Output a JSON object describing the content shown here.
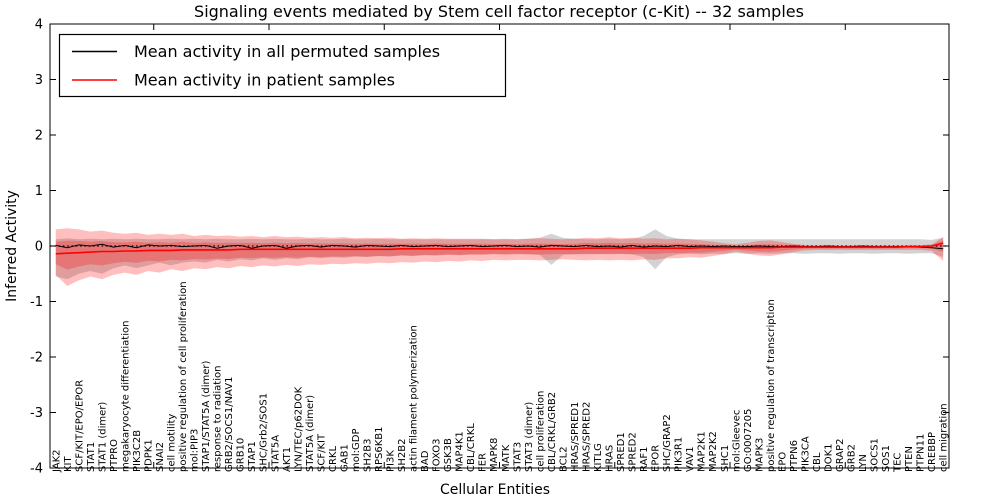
{
  "figure": {
    "title": "Signaling events mediated by Stem cell factor receptor (c-Kit) -- 32 samples",
    "xlabel": "Cellular Entities",
    "ylabel": "Inferred Activity"
  },
  "chart_data": {
    "type": "line",
    "title": "Signaling events mediated by Stem cell factor receptor (c-Kit) -- 32 samples",
    "xlabel": "Cellular Entities",
    "ylabel": "Inferred Activity",
    "ylim": [
      -4,
      4
    ],
    "yticks": [
      -4,
      -3,
      -2,
      -1,
      0,
      1,
      2,
      3,
      4
    ],
    "grid": false,
    "legend_position": "upper left",
    "zero_line": {
      "y": 0,
      "style": "dotted",
      "color": "#000000"
    },
    "categories": [
      "JAK2",
      "KIT",
      "SCF/KIT/EPO/EPOR",
      "STAT1",
      "STAT1 (dimer)",
      "PTPRO",
      "megakaryocyte differentiation",
      "PIK3C2B",
      "PDPK1",
      "SNAI2",
      "cell motility",
      "positive regulation of cell proliferation",
      "mol:PIP3",
      "STAP1/STAT5A (dimer)",
      "response to radiation",
      "GRB2/SOCS1/NAV1",
      "GRB10",
      "STAP1",
      "SHC/Grb2/SOS1",
      "STAT5A",
      "AKT1",
      "LYN/TEC/p62DOK",
      "STAT5A (dimer)",
      "SCF/KIT",
      "CRKL",
      "GAB1",
      "mol:GDP",
      "SH2B3",
      "RPS6KB1",
      "PI3K",
      "SH2B2",
      "actin filament polymerization",
      "BAD",
      "FOXO3",
      "GSK3B",
      "MAP4K1",
      "CBL/CRKL",
      "FER",
      "MAPK8",
      "MATK",
      "STAT3",
      "STAT3 (dimer)",
      "cell proliferation",
      "CBL/CRKL/GRB2",
      "BCL2",
      "HRAS/SPRED1",
      "HRAS/SPRED2",
      "KITLG",
      "HRAS",
      "SPRED1",
      "SPRED2",
      "RAF1",
      "EPOR",
      "SHC/GRAP2",
      "PIK3R1",
      "VAV1",
      "MAP2K1",
      "MAP2K2",
      "SHC1",
      "mol:Gleevec",
      "GO:0007205",
      "MAPK3",
      "positive regulation of transcription",
      "EPO",
      "PTPN6",
      "PIK3CA",
      "CBL",
      "DOK1",
      "GRAP2",
      "GRB2",
      "LYN",
      "SOCS1",
      "SOS1",
      "TEC",
      "PTEN",
      "PTPN11",
      "CREBBP",
      "cell migration"
    ],
    "series": [
      {
        "name": "Mean activity in all permuted samples",
        "color": "#000000",
        "band_color": "#808080",
        "band_opacity": 0.35,
        "values": [
          0.01,
          -0.03,
          0.02,
          0.0,
          0.03,
          -0.02,
          0.01,
          -0.03,
          0.02,
          0.0,
          0.01,
          -0.01,
          0.0,
          0.01,
          -0.04,
          0.0,
          0.01,
          -0.04,
          0.0,
          0.01,
          -0.04,
          0.0,
          0.01,
          -0.02,
          0.01,
          0.0,
          -0.02,
          0.01,
          0.0,
          -0.01,
          0.01,
          -0.01,
          0.0,
          0.01,
          -0.01,
          0.0,
          0.01,
          -0.01,
          0.0,
          0.01,
          -0.01,
          0.0,
          -0.02,
          0.01,
          0.0,
          -0.01,
          0.01,
          -0.01,
          0.0,
          -0.02,
          0.01,
          -0.02,
          0.0,
          -0.01,
          0.01,
          -0.01,
          0.0,
          -0.01,
          0.0,
          -0.01,
          -0.01,
          0.0,
          -0.01,
          -0.01,
          0.0,
          -0.01,
          -0.01,
          0.0,
          -0.01,
          -0.01,
          0.0,
          -0.01,
          -0.01,
          -0.01,
          -0.01,
          -0.02,
          -0.03,
          -0.05
        ],
        "band_upper": [
          0.12,
          0.14,
          0.12,
          0.13,
          0.12,
          0.13,
          0.12,
          0.13,
          0.12,
          0.12,
          0.13,
          0.12,
          0.13,
          0.12,
          0.13,
          0.12,
          0.12,
          0.13,
          0.12,
          0.13,
          0.12,
          0.12,
          0.13,
          0.12,
          0.12,
          0.13,
          0.12,
          0.12,
          0.13,
          0.12,
          0.12,
          0.12,
          0.12,
          0.12,
          0.12,
          0.12,
          0.12,
          0.12,
          0.12,
          0.12,
          0.12,
          0.13,
          0.15,
          0.22,
          0.15,
          0.13,
          0.12,
          0.12,
          0.13,
          0.12,
          0.13,
          0.18,
          0.3,
          0.18,
          0.13,
          0.12,
          0.12,
          0.12,
          0.12,
          0.12,
          0.12,
          0.12,
          0.12,
          0.12,
          0.12,
          0.12,
          0.12,
          0.12,
          0.12,
          0.12,
          0.12,
          0.12,
          0.12,
          0.12,
          0.12,
          0.12,
          0.11,
          0.15
        ],
        "band_lower": [
          -0.55,
          -0.6,
          -0.5,
          -0.45,
          -0.5,
          -0.4,
          -0.35,
          -0.4,
          -0.35,
          -0.3,
          -0.35,
          -0.3,
          -0.28,
          -0.3,
          -0.25,
          -0.28,
          -0.24,
          -0.26,
          -0.22,
          -0.25,
          -0.22,
          -0.24,
          -0.2,
          -0.22,
          -0.2,
          -0.21,
          -0.19,
          -0.2,
          -0.18,
          -0.19,
          -0.17,
          -0.18,
          -0.16,
          -0.17,
          -0.15,
          -0.16,
          -0.15,
          -0.15,
          -0.14,
          -0.15,
          -0.14,
          -0.15,
          -0.16,
          -0.34,
          -0.16,
          -0.15,
          -0.14,
          -0.15,
          -0.14,
          -0.14,
          -0.15,
          -0.2,
          -0.42,
          -0.2,
          -0.15,
          -0.14,
          -0.15,
          -0.14,
          -0.14,
          -0.13,
          -0.14,
          -0.13,
          -0.14,
          -0.13,
          -0.13,
          -0.14,
          -0.13,
          -0.13,
          -0.14,
          -0.13,
          -0.13,
          -0.14,
          -0.13,
          -0.13,
          -0.14,
          -0.13,
          -0.13,
          -0.2
        ]
      },
      {
        "name": "Mean activity in patient samples",
        "color": "#ff0000",
        "band_color": "#ff0000",
        "band_opacity": 0.25,
        "inner_band_scale": 0.5,
        "values": [
          -0.14,
          -0.13,
          -0.12,
          -0.11,
          -0.1,
          -0.1,
          -0.09,
          -0.09,
          -0.08,
          -0.08,
          -0.08,
          -0.07,
          -0.07,
          -0.07,
          -0.07,
          -0.07,
          -0.06,
          -0.06,
          -0.06,
          -0.06,
          -0.06,
          -0.06,
          -0.06,
          -0.06,
          -0.06,
          -0.06,
          -0.06,
          -0.06,
          -0.06,
          -0.06,
          -0.05,
          -0.05,
          -0.05,
          -0.05,
          -0.05,
          -0.05,
          -0.05,
          -0.05,
          -0.05,
          -0.05,
          -0.05,
          -0.05,
          -0.05,
          -0.05,
          -0.05,
          -0.05,
          -0.04,
          -0.04,
          -0.04,
          -0.04,
          -0.04,
          -0.04,
          -0.04,
          -0.04,
          -0.04,
          -0.04,
          -0.03,
          -0.03,
          -0.03,
          -0.03,
          -0.03,
          -0.03,
          -0.03,
          -0.02,
          -0.02,
          -0.02,
          -0.02,
          -0.02,
          -0.02,
          -0.02,
          -0.02,
          -0.02,
          -0.02,
          -0.02,
          -0.01,
          -0.01,
          0.0,
          0.05
        ],
        "band_upper": [
          0.3,
          0.32,
          0.3,
          0.26,
          0.28,
          0.24,
          0.22,
          0.24,
          0.2,
          0.22,
          0.2,
          0.22,
          0.18,
          0.2,
          0.18,
          0.19,
          0.17,
          0.18,
          0.16,
          0.18,
          0.16,
          0.17,
          0.15,
          0.16,
          0.15,
          0.16,
          0.14,
          0.15,
          0.14,
          0.15,
          0.13,
          0.14,
          0.13,
          0.14,
          0.13,
          0.13,
          0.13,
          0.13,
          0.12,
          0.13,
          0.12,
          0.13,
          0.14,
          0.13,
          0.12,
          0.13,
          0.15,
          0.14,
          0.16,
          0.14,
          0.15,
          0.13,
          0.14,
          0.12,
          0.13,
          0.12,
          0.1,
          0.08,
          0.05,
          0.03,
          0.06,
          0.09,
          0.1,
          0.07,
          0.04,
          0.02,
          0.01,
          0.01,
          0.01,
          0.01,
          0.01,
          0.01,
          0.01,
          0.01,
          0.01,
          0.01,
          0.03,
          0.16
        ],
        "band_lower": [
          -0.52,
          -0.72,
          -0.62,
          -0.55,
          -0.6,
          -0.52,
          -0.48,
          -0.52,
          -0.45,
          -0.48,
          -0.42,
          -0.45,
          -0.4,
          -0.42,
          -0.38,
          -0.4,
          -0.36,
          -0.38,
          -0.35,
          -0.37,
          -0.34,
          -0.36,
          -0.33,
          -0.34,
          -0.32,
          -0.33,
          -0.31,
          -0.32,
          -0.3,
          -0.31,
          -0.29,
          -0.3,
          -0.28,
          -0.29,
          -0.27,
          -0.28,
          -0.26,
          -0.27,
          -0.25,
          -0.26,
          -0.25,
          -0.25,
          -0.26,
          -0.25,
          -0.24,
          -0.25,
          -0.26,
          -0.25,
          -0.26,
          -0.25,
          -0.26,
          -0.24,
          -0.25,
          -0.22,
          -0.22,
          -0.2,
          -0.21,
          -0.18,
          -0.15,
          -0.1,
          -0.14,
          -0.17,
          -0.18,
          -0.15,
          -0.11,
          -0.08,
          -0.07,
          -0.07,
          -0.07,
          -0.07,
          -0.07,
          -0.07,
          -0.07,
          -0.07,
          -0.07,
          -0.07,
          -0.09,
          -0.27
        ]
      }
    ]
  }
}
